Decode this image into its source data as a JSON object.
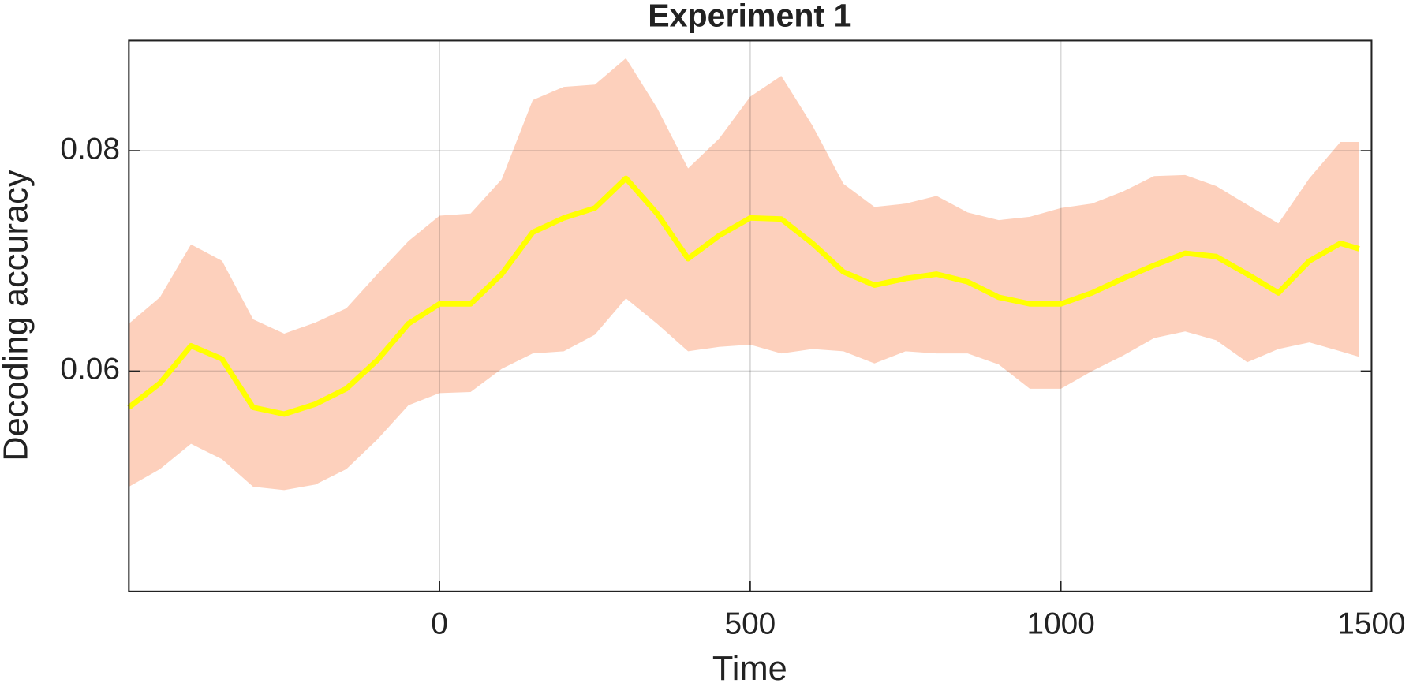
{
  "chart_data": {
    "type": "line",
    "title": "Experiment 1",
    "x_label": "Time",
    "y_label": "Decoding accuracy",
    "x": [
      -500,
      -450,
      -400,
      -350,
      -300,
      -250,
      -200,
      -150,
      -100,
      -50,
      0,
      50,
      100,
      150,
      200,
      250,
      300,
      350,
      400,
      450,
      500,
      550,
      600,
      650,
      700,
      750,
      800,
      850,
      900,
      950,
      1000,
      1050,
      1100,
      1150,
      1200,
      1250,
      1300,
      1350,
      1400,
      1450,
      1480
    ],
    "series": [
      {
        "color": "#ffff00",
        "values": [
          0.0567,
          0.0589,
          0.0623,
          0.0611,
          0.0567,
          0.0561,
          0.057,
          0.0584,
          0.061,
          0.0643,
          0.0661,
          0.0661,
          0.0688,
          0.0726,
          0.0739,
          0.0748,
          0.0775,
          0.0743,
          0.0702,
          0.0723,
          0.0739,
          0.0738,
          0.0716,
          0.069,
          0.0678,
          0.0684,
          0.0688,
          0.0681,
          0.0667,
          0.0661,
          0.0661,
          0.0671,
          0.0684,
          0.0696,
          0.0707,
          0.0704,
          0.0688,
          0.0671,
          0.07,
          0.0716,
          0.0711
        ]
      }
    ],
    "band": {
      "color": "#fdd0bc",
      "upper": [
        0.0643,
        0.0667,
        0.0715,
        0.07,
        0.0647,
        0.0634,
        0.0644,
        0.0657,
        0.0688,
        0.0718,
        0.0741,
        0.0743,
        0.0774,
        0.0846,
        0.0858,
        0.086,
        0.0884,
        0.0839,
        0.0784,
        0.0811,
        0.0849,
        0.0868,
        0.0823,
        0.077,
        0.0749,
        0.0752,
        0.0759,
        0.0744,
        0.0737,
        0.074,
        0.0748,
        0.0752,
        0.0763,
        0.0777,
        0.0778,
        0.0768,
        0.0751,
        0.0734,
        0.0775,
        0.0808,
        0.0808
      ],
      "lower": [
        0.0495,
        0.0511,
        0.0534,
        0.052,
        0.0495,
        0.0492,
        0.0497,
        0.0511,
        0.0538,
        0.0569,
        0.058,
        0.0581,
        0.0602,
        0.0616,
        0.0618,
        0.0633,
        0.0666,
        0.0643,
        0.0618,
        0.0622,
        0.0624,
        0.0616,
        0.062,
        0.0618,
        0.0607,
        0.0618,
        0.0616,
        0.0616,
        0.0606,
        0.0584,
        0.0584,
        0.06,
        0.0614,
        0.063,
        0.0636,
        0.0628,
        0.0608,
        0.062,
        0.0626,
        0.0618,
        0.0613
      ]
    },
    "xlim": [
      -500,
      1500
    ],
    "xticks": [
      0,
      500,
      1000,
      1500
    ],
    "ylim": [
      0.04,
      0.09
    ],
    "yticks": [
      0.06,
      0.08
    ],
    "grid": true
  }
}
